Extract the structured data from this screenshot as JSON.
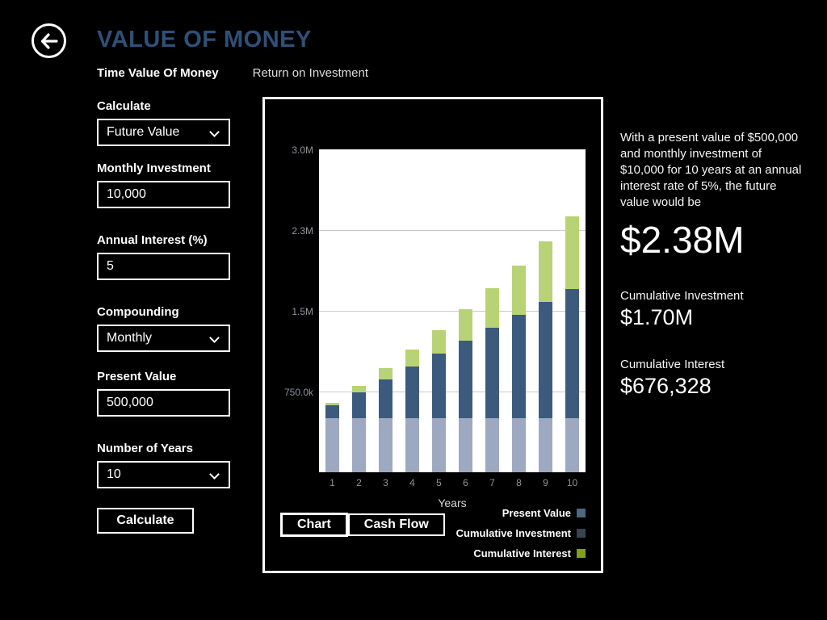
{
  "header": {
    "title": "VALUE OF MONEY",
    "back_icon": "arrow-left-icon"
  },
  "tabs": [
    {
      "label": "Time Value Of Money",
      "active": true
    },
    {
      "label": "Return on Investment",
      "active": false
    }
  ],
  "form": {
    "calculate": {
      "label": "Calculate",
      "value": "Future Value",
      "control": "dropdown",
      "icon": "chevron-down-icon"
    },
    "monthly_investment": {
      "label": "Monthly Investment",
      "value": "10,000",
      "control": "input"
    },
    "annual_interest": {
      "label": "Annual Interest (%)",
      "value": "5",
      "control": "input"
    },
    "compounding": {
      "label": "Compounding",
      "value": "Monthly",
      "control": "dropdown",
      "icon": "chevron-down-icon"
    },
    "present_value": {
      "label": "Present Value",
      "value": "500,000",
      "control": "input"
    },
    "number_of_years": {
      "label": "Number of Years",
      "value": "10",
      "control": "dropdown",
      "icon": "chevron-down-icon"
    },
    "calculate_button": "Calculate"
  },
  "chart_panel": {
    "view_buttons": [
      {
        "label": "Chart",
        "active": true
      },
      {
        "label": "Cash Flow",
        "active": false
      }
    ],
    "legend": [
      {
        "label": "Present Value",
        "color": "#4d6781"
      },
      {
        "label": "Cumulative Investment",
        "color": "#394450"
      },
      {
        "label": "Cumulative Interest",
        "color": "#82a01f"
      }
    ]
  },
  "chart_data": {
    "type": "bar",
    "stacked": true,
    "categories": [
      "1",
      "2",
      "3",
      "4",
      "5",
      "6",
      "7",
      "8",
      "9",
      "10"
    ],
    "xlabel": "Years",
    "ylabel": "",
    "ylim": [
      0,
      3000000
    ],
    "yticks": [
      {
        "label": "3.0M",
        "value": 3000000
      },
      {
        "label": "2.3M",
        "value": 2250000
      },
      {
        "label": "1.5M",
        "value": 1500000
      },
      {
        "label": "750.0k",
        "value": 750000
      }
    ],
    "grid": true,
    "legend_position": "bottom-right",
    "series": [
      {
        "name": "Present Value",
        "color": "#9ca9c1",
        "values": [
          500000,
          500000,
          500000,
          500000,
          500000,
          500000,
          500000,
          500000,
          500000,
          500000
        ]
      },
      {
        "name": "Cumulative Investment",
        "color": "#3c5a7e",
        "values": [
          120000,
          240000,
          360000,
          480000,
          600000,
          720000,
          840000,
          960000,
          1080000,
          1200000
        ]
      },
      {
        "name": "Cumulative Interest",
        "color": "#b8d375",
        "values": [
          28370,
          64330,
          108243,
          160552,
          221736,
          292113,
          372211,
          462690,
          563817,
          676328
        ]
      }
    ]
  },
  "results": {
    "summary": "With a present value of $500,000 and monthly investment of $10,000 for 10 years at an annual interest rate of 5%, the future value would be",
    "future_value": "$2.38M",
    "cumulative_investment_label": "Cumulative Investment",
    "cumulative_investment": "$1.70M",
    "cumulative_interest_label": "Cumulative Interest",
    "cumulative_interest": "$676,328"
  }
}
